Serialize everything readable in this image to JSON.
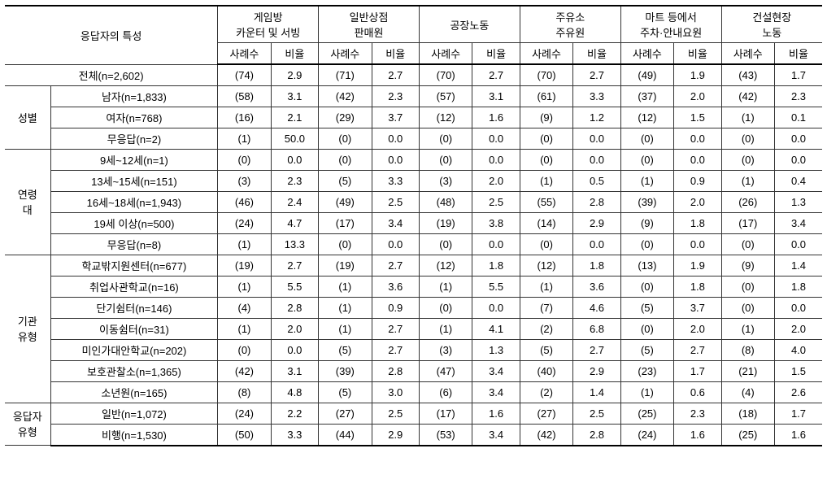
{
  "header": {
    "respondent": "응답자의 특성",
    "groups": [
      "게임방\n카운터 및 서빙",
      "일반상점\n판매원",
      "공장노동",
      "주유소\n주유원",
      "마트 등에서\n주차·안내요원",
      "건설현장\n노동"
    ],
    "sub_count": "사례수",
    "sub_rate": "비율"
  },
  "sections": [
    {
      "group": "",
      "rows": [
        {
          "label": "전체(n=2,602)",
          "cells": [
            "(74)",
            "2.9",
            "(71)",
            "2.7",
            "(70)",
            "2.7",
            "(70)",
            "2.7",
            "(49)",
            "1.9",
            "(43)",
            "1.7"
          ]
        }
      ]
    },
    {
      "group": "성별",
      "rows": [
        {
          "label": "남자(n=1,833)",
          "cells": [
            "(58)",
            "3.1",
            "(42)",
            "2.3",
            "(57)",
            "3.1",
            "(61)",
            "3.3",
            "(37)",
            "2.0",
            "(42)",
            "2.3"
          ]
        },
        {
          "label": "여자(n=768)",
          "cells": [
            "(16)",
            "2.1",
            "(29)",
            "3.7",
            "(12)",
            "1.6",
            "(9)",
            "1.2",
            "(12)",
            "1.5",
            "(1)",
            "0.1"
          ]
        },
        {
          "label": "무응답(n=2)",
          "cells": [
            "(1)",
            "50.0",
            "(0)",
            "0.0",
            "(0)",
            "0.0",
            "(0)",
            "0.0",
            "(0)",
            "0.0",
            "(0)",
            "0.0"
          ]
        }
      ]
    },
    {
      "group": "연령\n대",
      "rows": [
        {
          "label": "9세~12세(n=1)",
          "cells": [
            "(0)",
            "0.0",
            "(0)",
            "0.0",
            "(0)",
            "0.0",
            "(0)",
            "0.0",
            "(0)",
            "0.0",
            "(0)",
            "0.0"
          ]
        },
        {
          "label": "13세~15세(n=151)",
          "cells": [
            "(3)",
            "2.3",
            "(5)",
            "3.3",
            "(3)",
            "2.0",
            "(1)",
            "0.5",
            "(1)",
            "0.9",
            "(1)",
            "0.4"
          ]
        },
        {
          "label": "16세~18세(n=1,943)",
          "cells": [
            "(46)",
            "2.4",
            "(49)",
            "2.5",
            "(48)",
            "2.5",
            "(55)",
            "2.8",
            "(39)",
            "2.0",
            "(26)",
            "1.3"
          ]
        },
        {
          "label": "19세 이상(n=500)",
          "cells": [
            "(24)",
            "4.7",
            "(17)",
            "3.4",
            "(19)",
            "3.8",
            "(14)",
            "2.9",
            "(9)",
            "1.8",
            "(17)",
            "3.4"
          ]
        },
        {
          "label": "무응답(n=8)",
          "cells": [
            "(1)",
            "13.3",
            "(0)",
            "0.0",
            "(0)",
            "0.0",
            "(0)",
            "0.0",
            "(0)",
            "0.0",
            "(0)",
            "0.0"
          ]
        }
      ]
    },
    {
      "group": "기관\n유형",
      "rows": [
        {
          "label": "학교밖지원센터(n=677)",
          "cells": [
            "(19)",
            "2.7",
            "(19)",
            "2.7",
            "(12)",
            "1.8",
            "(12)",
            "1.8",
            "(13)",
            "1.9",
            "(9)",
            "1.4"
          ]
        },
        {
          "label": "취업사관학교(n=16)",
          "cells": [
            "(1)",
            "5.5",
            "(1)",
            "3.6",
            "(1)",
            "5.5",
            "(1)",
            "3.6",
            "(0)",
            "1.8",
            "(0)",
            "1.8"
          ]
        },
        {
          "label": "단기쉼터(n=146)",
          "cells": [
            "(4)",
            "2.8",
            "(1)",
            "0.9",
            "(0)",
            "0.0",
            "(7)",
            "4.6",
            "(5)",
            "3.7",
            "(0)",
            "0.0"
          ]
        },
        {
          "label": "이동쉼터(n=31)",
          "cells": [
            "(1)",
            "2.0",
            "(1)",
            "2.7",
            "(1)",
            "4.1",
            "(2)",
            "6.8",
            "(0)",
            "2.0",
            "(1)",
            "2.0"
          ]
        },
        {
          "label": "미인가대안학교(n=202)",
          "cells": [
            "(0)",
            "0.0",
            "(5)",
            "2.7",
            "(3)",
            "1.3",
            "(5)",
            "2.7",
            "(5)",
            "2.7",
            "(8)",
            "4.0"
          ]
        },
        {
          "label": "보호관찰소(n=1,365)",
          "cells": [
            "(42)",
            "3.1",
            "(39)",
            "2.8",
            "(47)",
            "3.4",
            "(40)",
            "2.9",
            "(23)",
            "1.7",
            "(21)",
            "1.5"
          ]
        },
        {
          "label": "소년원(n=165)",
          "cells": [
            "(8)",
            "4.8",
            "(5)",
            "3.0",
            "(6)",
            "3.4",
            "(2)",
            "1.4",
            "(1)",
            "0.6",
            "(4)",
            "2.6"
          ]
        }
      ]
    },
    {
      "group": "응답자\n유형",
      "rows": [
        {
          "label": "일반(n=1,072)",
          "cells": [
            "(24)",
            "2.2",
            "(27)",
            "2.5",
            "(17)",
            "1.6",
            "(27)",
            "2.5",
            "(25)",
            "2.3",
            "(18)",
            "1.7"
          ]
        },
        {
          "label": "비행(n=1,530)",
          "cells": [
            "(50)",
            "3.3",
            "(44)",
            "2.9",
            "(53)",
            "3.4",
            "(42)",
            "2.8",
            "(24)",
            "1.6",
            "(25)",
            "1.6"
          ]
        }
      ]
    }
  ]
}
